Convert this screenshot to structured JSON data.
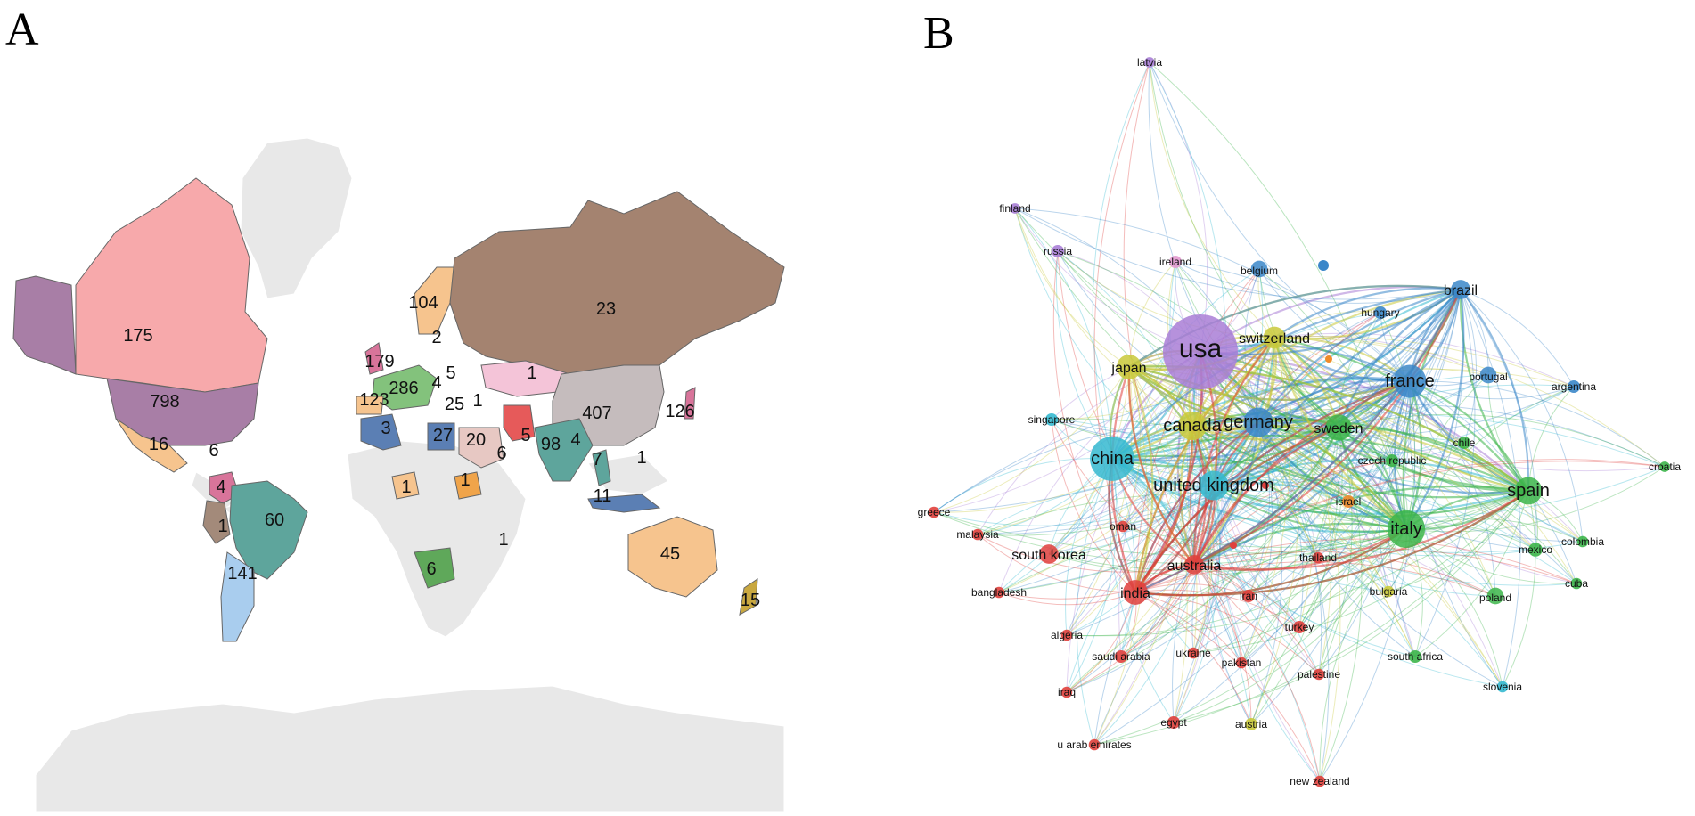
{
  "panel_a": {
    "letter": "A",
    "country_counts": [
      {
        "country": "Alaska region",
        "label": ""
      },
      {
        "country": "Canada",
        "label": "175"
      },
      {
        "country": "United States",
        "label": "798"
      },
      {
        "country": "Mexico",
        "label": "16"
      },
      {
        "country": "Central America",
        "label": "6"
      },
      {
        "country": "Colombia",
        "label": "4"
      },
      {
        "country": "Peru",
        "label": "1"
      },
      {
        "country": "Brazil",
        "label": "60"
      },
      {
        "country": "Argentina",
        "label": "141"
      },
      {
        "country": "Norway/Sweden",
        "label": "104"
      },
      {
        "country": "Finland",
        "label": "2"
      },
      {
        "country": "United Kingdom",
        "label": "179"
      },
      {
        "country": "France/Germany",
        "label": "286"
      },
      {
        "country": "Poland",
        "label": "4"
      },
      {
        "country": "Ukraine",
        "label": "5"
      },
      {
        "country": "Spain",
        "label": "123"
      },
      {
        "country": "Turkey",
        "label": "25"
      },
      {
        "country": "Caucasus",
        "label": "1"
      },
      {
        "country": "Russia",
        "label": "23"
      },
      {
        "country": "Kazakhstan",
        "label": "1"
      },
      {
        "country": "China",
        "label": "407"
      },
      {
        "country": "Japan/Korea",
        "label": "126"
      },
      {
        "country": "Algeria",
        "label": "3"
      },
      {
        "country": "Egypt",
        "label": "27"
      },
      {
        "country": "Saudi Arabia",
        "label": "20"
      },
      {
        "country": "Iran",
        "label": "5"
      },
      {
        "country": "India",
        "label": "98"
      },
      {
        "country": "Bangladesh",
        "label": "4"
      },
      {
        "country": "Oman",
        "label": "6"
      },
      {
        "country": "Thailand",
        "label": "7"
      },
      {
        "country": "Philippines",
        "label": "1"
      },
      {
        "country": "Malaysia/Indonesia",
        "label": "11"
      },
      {
        "country": "Nigeria",
        "label": "1"
      },
      {
        "country": "Ethiopia",
        "label": "1"
      },
      {
        "country": "Madagascar region",
        "label": "1"
      },
      {
        "country": "South Africa",
        "label": "6"
      },
      {
        "country": "Australia",
        "label": "45"
      },
      {
        "country": "New Zealand",
        "label": "15"
      }
    ]
  },
  "panel_b": {
    "letter": "B",
    "clusters": {
      "purple": "#a97ed6",
      "blue": "#3b87c9",
      "cyan": "#35b9d0",
      "green": "#3cb54a",
      "yellow": "#c9c93a",
      "red": "#e0403c",
      "orange": "#f08a2a",
      "pink": "#e39ad0"
    },
    "nodes": [
      {
        "label": "usa",
        "cluster": "purple",
        "weight": 1.0
      },
      {
        "label": "china",
        "cluster": "cyan",
        "weight": 0.55
      },
      {
        "label": "italy",
        "cluster": "green",
        "weight": 0.45
      },
      {
        "label": "france",
        "cluster": "blue",
        "weight": 0.38
      },
      {
        "label": "united kingdom",
        "cluster": "cyan",
        "weight": 0.33
      },
      {
        "label": "germany",
        "cluster": "blue",
        "weight": 0.33
      },
      {
        "label": "canada",
        "cluster": "yellow",
        "weight": 0.32
      },
      {
        "label": "sweden",
        "cluster": "green",
        "weight": 0.28
      },
      {
        "label": "spain",
        "cluster": "green",
        "weight": 0.3
      },
      {
        "label": "japan",
        "cluster": "yellow",
        "weight": 0.26
      },
      {
        "label": "india",
        "cluster": "red",
        "weight": 0.26
      },
      {
        "label": "switzerland",
        "cluster": "yellow",
        "weight": 0.22
      },
      {
        "label": "south korea",
        "cluster": "red",
        "weight": 0.18
      },
      {
        "label": "australia",
        "cluster": "red",
        "weight": 0.18
      },
      {
        "label": "brazil",
        "cluster": "blue",
        "weight": 0.18
      },
      {
        "label": "belgium",
        "cluster": "blue",
        "weight": 0.14
      },
      {
        "label": "portugal",
        "cluster": "blue",
        "weight": 0.14
      },
      {
        "label": "poland",
        "cluster": "green",
        "weight": 0.14
      },
      {
        "label": "mexico",
        "cluster": "green",
        "weight": 0.1
      },
      {
        "label": "russia",
        "cluster": "purple",
        "weight": 0.08
      },
      {
        "label": "finland",
        "cluster": "purple",
        "weight": 0.05
      },
      {
        "label": "latvia",
        "cluster": "purple",
        "weight": 0.05
      },
      {
        "label": "ireland",
        "cluster": "pink",
        "weight": 0.08
      },
      {
        "label": "hungary",
        "cluster": "blue",
        "weight": 0.08
      },
      {
        "label": "argentina",
        "cluster": "blue",
        "weight": 0.08
      },
      {
        "label": "singapore",
        "cluster": "cyan",
        "weight": 0.08
      },
      {
        "label": "chile",
        "cluster": "green",
        "weight": 0.08
      },
      {
        "label": "czech republic",
        "cluster": "green",
        "weight": 0.08
      },
      {
        "label": "israel",
        "cluster": "orange",
        "weight": 0.08
      },
      {
        "label": "croatia",
        "cluster": "green",
        "weight": 0.05
      },
      {
        "label": "colombia",
        "cluster": "green",
        "weight": 0.06
      },
      {
        "label": "cuba",
        "cluster": "green",
        "weight": 0.06
      },
      {
        "label": "greece",
        "cluster": "red",
        "weight": 0.06
      },
      {
        "label": "malaysia",
        "cluster": "red",
        "weight": 0.06
      },
      {
        "label": "oman",
        "cluster": "red",
        "weight": 0.06
      },
      {
        "label": "bangladesh",
        "cluster": "red",
        "weight": 0.06
      },
      {
        "label": "thailand",
        "cluster": "red",
        "weight": 0.06
      },
      {
        "label": "iran",
        "cluster": "red",
        "weight": 0.08
      },
      {
        "label": "bulgaria",
        "cluster": "yellow",
        "weight": 0.06
      },
      {
        "label": "turkey",
        "cluster": "red",
        "weight": 0.08
      },
      {
        "label": "algeria",
        "cluster": "red",
        "weight": 0.06
      },
      {
        "label": "saudi arabia",
        "cluster": "red",
        "weight": 0.08
      },
      {
        "label": "ukraine",
        "cluster": "red",
        "weight": 0.06
      },
      {
        "label": "pakistan",
        "cluster": "red",
        "weight": 0.06
      },
      {
        "label": "south africa",
        "cluster": "green",
        "weight": 0.08
      },
      {
        "label": "palestine",
        "cluster": "red",
        "weight": 0.06
      },
      {
        "label": "slovenia",
        "cluster": "cyan",
        "weight": 0.06
      },
      {
        "label": "iraq",
        "cluster": "red",
        "weight": 0.06
      },
      {
        "label": "egypt",
        "cluster": "red",
        "weight": 0.08
      },
      {
        "label": "austria",
        "cluster": "yellow",
        "weight": 0.08
      },
      {
        "label": "u arab emirates",
        "cluster": "red",
        "weight": 0.06
      },
      {
        "label": "new zealand",
        "cluster": "red",
        "weight": 0.06
      }
    ]
  }
}
